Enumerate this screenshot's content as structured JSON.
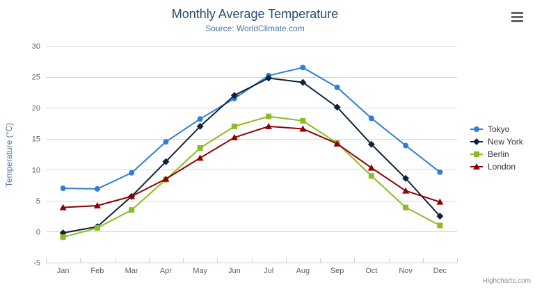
{
  "header": {
    "title": "Monthly Average Temperature",
    "subtitle": "Source: WorldClimate.com"
  },
  "credits": "Highcharts.com",
  "context_menu_icon": "hamburger-icon",
  "colors": {
    "title": "#274b6d",
    "subtitle": "#4d759e",
    "axis_label": "#606060",
    "axis_line": "#c0d0e0",
    "gridline": "#d8d8d8",
    "legend_text": "#333333",
    "credits_text": "#909090"
  },
  "chart_data": {
    "type": "line",
    "title": "Monthly Average Temperature",
    "subtitle": "Source: WorldClimate.com",
    "xlabel": "",
    "ylabel": "Temperature (°C)",
    "categories": [
      "Jan",
      "Feb",
      "Mar",
      "Apr",
      "May",
      "Jun",
      "Jul",
      "Aug",
      "Sep",
      "Oct",
      "Nov",
      "Dec"
    ],
    "ylim": [
      -5,
      30
    ],
    "y_ticks": [
      -5,
      0,
      5,
      10,
      15,
      20,
      25,
      30
    ],
    "grid": true,
    "legend_position": "right",
    "series": [
      {
        "name": "Tokyo",
        "color": "#2f7ed8",
        "marker": "circle",
        "values": [
          7.0,
          6.9,
          9.5,
          14.5,
          18.2,
          21.5,
          25.2,
          26.5,
          23.3,
          18.3,
          13.9,
          9.6
        ]
      },
      {
        "name": "New York",
        "color": "#0d233a",
        "marker": "diamond",
        "values": [
          -0.2,
          0.8,
          5.7,
          11.3,
          17.0,
          22.0,
          24.8,
          24.1,
          20.1,
          14.1,
          8.6,
          2.5
        ]
      },
      {
        "name": "Berlin",
        "color": "#8bbc21",
        "marker": "square",
        "values": [
          -0.9,
          0.6,
          3.5,
          8.4,
          13.5,
          17.0,
          18.6,
          17.9,
          14.3,
          9.0,
          3.9,
          1.0
        ]
      },
      {
        "name": "London",
        "color": "#910000",
        "marker": "triangle",
        "values": [
          3.9,
          4.2,
          5.7,
          8.5,
          11.9,
          15.2,
          17.0,
          16.6,
          14.2,
          10.3,
          6.6,
          4.8
        ]
      }
    ]
  }
}
